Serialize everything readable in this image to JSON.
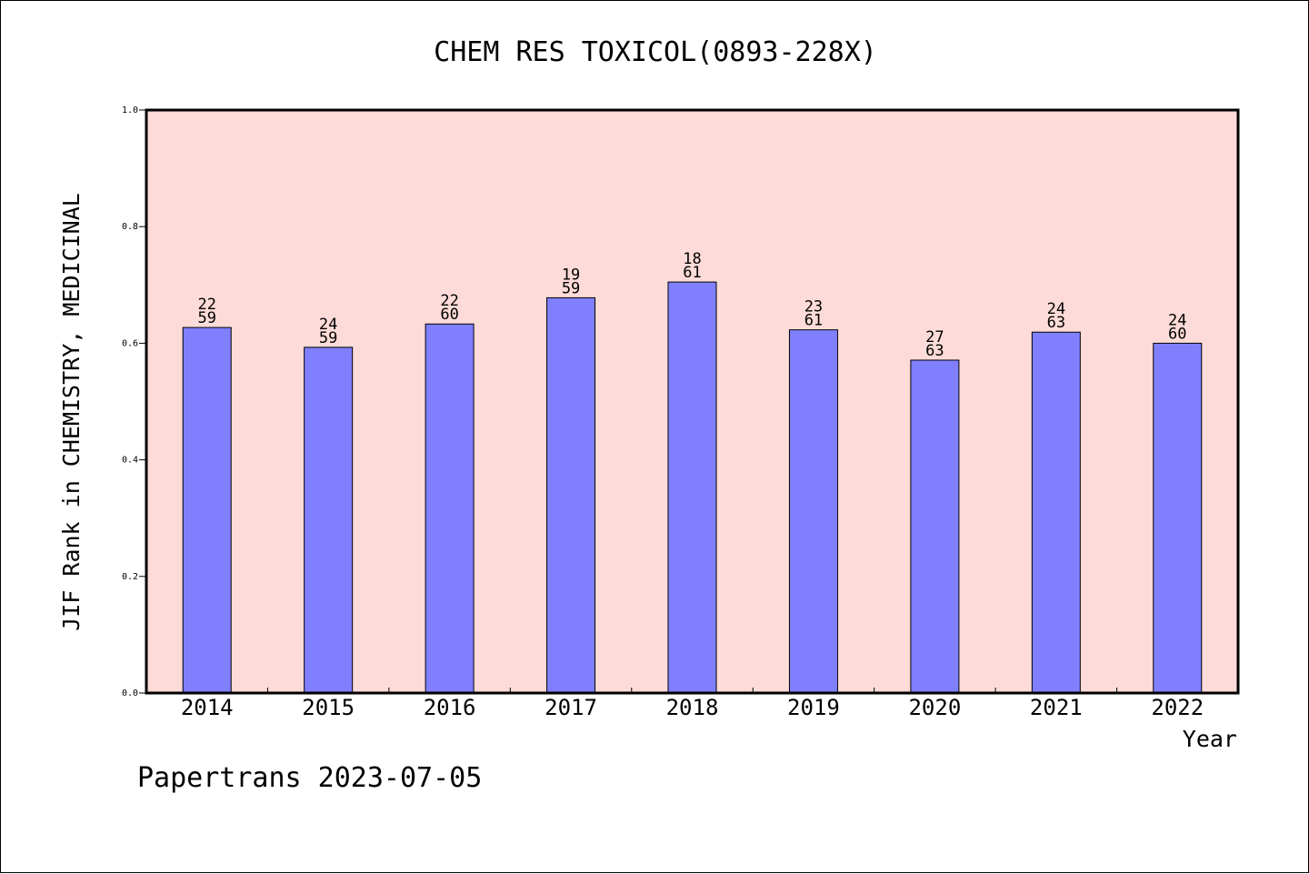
{
  "chart_data": {
    "type": "bar",
    "title": "CHEM RES TOXICOL(0893-228X)",
    "xlabel": "Year",
    "ylabel": "JIF Rank in CHEMISTRY, MEDICINAL",
    "categories": [
      "2014",
      "2015",
      "2016",
      "2017",
      "2018",
      "2019",
      "2020",
      "2021",
      "2022"
    ],
    "values": [
      0.627,
      0.593,
      0.633,
      0.678,
      0.705,
      0.623,
      0.571,
      0.619,
      0.6
    ],
    "bar_labels": [
      [
        "22",
        "59"
      ],
      [
        "24",
        "59"
      ],
      [
        "22",
        "60"
      ],
      [
        "19",
        "59"
      ],
      [
        "18",
        "61"
      ],
      [
        "23",
        "61"
      ],
      [
        "27",
        "63"
      ],
      [
        "24",
        "63"
      ],
      [
        "24",
        "60"
      ]
    ],
    "ylim": [
      0.0,
      1.0
    ],
    "yticks": [
      "0.0",
      "0.2",
      "0.4",
      "0.6",
      "0.8",
      "1.0"
    ],
    "grid": false,
    "legend": "none",
    "colors": {
      "bar_fill": "#8080ff",
      "plot_background": "#fddbd8",
      "axis": "#000000"
    }
  },
  "footer": {
    "watermark": "Papertrans 2023-07-05"
  }
}
